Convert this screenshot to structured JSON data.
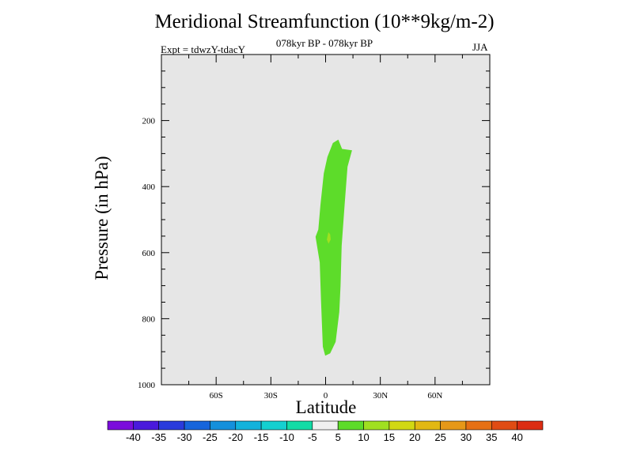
{
  "chart_data": {
    "type": "contour",
    "title": "Meridional Streamfunction (10**9kg/m-2)",
    "subtitle": "078kyr BP - 078kyr BP",
    "experiment": "Expt = tdwzY-tdacY",
    "season": "JJA",
    "xlabel": "Latitude",
    "ylabel": "Pressure (in hPa)",
    "xlim": [
      -90,
      90
    ],
    "ylim": [
      1000,
      0
    ],
    "y_reversed": true,
    "x_ticks": [
      {
        "value": -60,
        "label": "60S"
      },
      {
        "value": -30,
        "label": "30S"
      },
      {
        "value": 0,
        "label": "0"
      },
      {
        "value": 30,
        "label": "30N"
      },
      {
        "value": 60,
        "label": "60N"
      }
    ],
    "y_ticks": [
      {
        "value": 200,
        "label": "200"
      },
      {
        "value": 400,
        "label": "400"
      },
      {
        "value": 600,
        "label": "600"
      },
      {
        "value": 800,
        "label": "800"
      },
      {
        "value": 1000,
        "label": "1000"
      }
    ],
    "background_color": "#e6e6e6",
    "regions": [
      {
        "name": "5 to 10 band",
        "color": "#5ddc2a",
        "polygon": [
          [
            -0.2,
            912
          ],
          [
            2.5,
            905
          ],
          [
            5.5,
            870
          ],
          [
            7.5,
            780
          ],
          [
            8.2,
            700
          ],
          [
            8.8,
            580
          ],
          [
            10.5,
            450
          ],
          [
            12,
            340
          ],
          [
            14.5,
            290
          ],
          [
            9,
            286
          ],
          [
            7,
            258
          ],
          [
            4,
            268
          ],
          [
            1,
            310
          ],
          [
            -1,
            360
          ],
          [
            -2.8,
            455
          ],
          [
            -4,
            530
          ],
          [
            -5.5,
            552
          ],
          [
            -3.2,
            630
          ],
          [
            -2.5,
            745
          ],
          [
            -1.5,
            885
          ]
        ]
      },
      {
        "name": "10 to 15 band",
        "color": "#a0e020",
        "polygon": [
          [
            1.5,
            538
          ],
          [
            2.5,
            545
          ],
          [
            2.8,
            560
          ],
          [
            1.6,
            573
          ],
          [
            0.7,
            560
          ]
        ]
      }
    ],
    "colorbar": {
      "labels": [
        "-40",
        "-35",
        "-30",
        "-25",
        "-20",
        "-15",
        "-10",
        "-5",
        "5",
        "10",
        "15",
        "20",
        "25",
        "30",
        "35",
        "40"
      ],
      "colors": [
        "#7b0ddc",
        "#4a1adc",
        "#2a3bdc",
        "#1665dc",
        "#1490dc",
        "#12b2dc",
        "#14d0d0",
        "#12dca6",
        "#f0f0f0",
        "#5ddc2a",
        "#a0e020",
        "#d2d812",
        "#e2b812",
        "#e69818",
        "#e67014",
        "#e04c14",
        "#dc2c12"
      ]
    }
  }
}
